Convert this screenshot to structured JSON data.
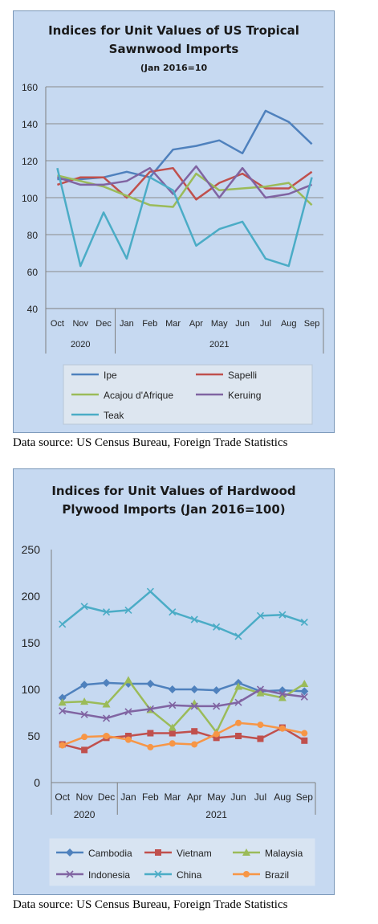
{
  "charts": [
    {
      "title_line1": "Indices for Unit Values of US Tropical",
      "title_line2": "Sawnwood Imports",
      "title_line3": "(Jan 2016=10",
      "caption": "Data source: US Census Bureau, Foreign Trade Statistics"
    },
    {
      "title_line1": "Indices for Unit Values of Hardwood",
      "title_line2": "Plywood Imports (Jan 2016=100)",
      "caption": "Data source: US Census Bureau, Foreign Trade Statistics"
    }
  ],
  "chart_data": [
    {
      "type": "line",
      "title": "Indices for Unit Values of US Tropical Sawnwood Imports (Jan 2016=10",
      "categories": [
        "Oct",
        "Nov",
        "Dec",
        "Jan",
        "Feb",
        "Mar",
        "Apr",
        "May",
        "Jun",
        "Jul",
        "Aug",
        "Sep"
      ],
      "year_labels": [
        "2020",
        "2021"
      ],
      "ylim": [
        40,
        160
      ],
      "yticks": [
        40,
        60,
        80,
        100,
        120,
        140,
        160
      ],
      "grid": true,
      "legend_position": "bottom",
      "series": [
        {
          "name": "Ipe",
          "color": "#4f81bd",
          "marker": "none",
          "values": [
            110,
            110,
            111,
            114,
            111,
            126,
            128,
            131,
            124,
            147,
            141,
            129
          ]
        },
        {
          "name": "Sapelli",
          "color": "#c0504d",
          "marker": "none",
          "values": [
            107,
            111,
            111,
            100,
            114,
            116,
            99,
            108,
            113,
            105,
            105,
            114
          ]
        },
        {
          "name": "Acajou d'Afrique",
          "color": "#9bbb59",
          "marker": "none",
          "values": [
            112,
            109,
            106,
            101,
            96,
            95,
            113,
            104,
            105,
            106,
            108,
            96
          ]
        },
        {
          "name": "Keruing",
          "color": "#8064a2",
          "marker": "none",
          "values": [
            111,
            107,
            107,
            109,
            116,
            102,
            117,
            100,
            116,
            100,
            102,
            107
          ]
        },
        {
          "name": "Teak",
          "color": "#4bacc6",
          "marker": "none",
          "values": [
            116,
            63,
            92,
            67,
            111,
            104,
            74,
            83,
            87,
            67,
            63,
            111
          ]
        }
      ]
    },
    {
      "type": "line",
      "title": "Indices for Unit Values of Hardwood Plywood Imports (Jan 2016=100)",
      "categories": [
        "Oct",
        "Nov",
        "Dec",
        "Jan",
        "Feb",
        "Mar",
        "Apr",
        "May",
        "Jun",
        "Jul",
        "Aug",
        "Sep"
      ],
      "year_labels": [
        "2020",
        "2021"
      ],
      "ylim": [
        0,
        250
      ],
      "yticks": [
        0,
        50,
        100,
        150,
        200,
        250
      ],
      "grid": false,
      "legend_position": "bottom",
      "series": [
        {
          "name": "Cambodia",
          "color": "#4f81bd",
          "marker": "diamond",
          "values": [
            91,
            105,
            107,
            106,
            106,
            100,
            100,
            99,
            107,
            98,
            99,
            98
          ]
        },
        {
          "name": "Vietnam",
          "color": "#c0504d",
          "marker": "square",
          "values": [
            41,
            35,
            48,
            50,
            53,
            53,
            55,
            48,
            50,
            47,
            59,
            45
          ]
        },
        {
          "name": "Malaysia",
          "color": "#9bbb59",
          "marker": "triangle",
          "values": [
            86,
            87,
            84,
            110,
            78,
            59,
            85,
            54,
            103,
            96,
            91,
            106
          ]
        },
        {
          "name": "Indonesia",
          "color": "#8064a2",
          "marker": "x",
          "values": [
            77,
            73,
            69,
            76,
            79,
            83,
            82,
            82,
            86,
            100,
            95,
            92
          ]
        },
        {
          "name": "China",
          "color": "#4bacc6",
          "marker": "x",
          "values": [
            170,
            189,
            183,
            185,
            205,
            183,
            175,
            167,
            157,
            179,
            180,
            172
          ]
        },
        {
          "name": "Brazil",
          "color": "#f79646",
          "marker": "circle",
          "values": [
            40,
            49,
            50,
            46,
            38,
            42,
            41,
            52,
            64,
            62,
            58,
            53
          ]
        }
      ]
    }
  ]
}
